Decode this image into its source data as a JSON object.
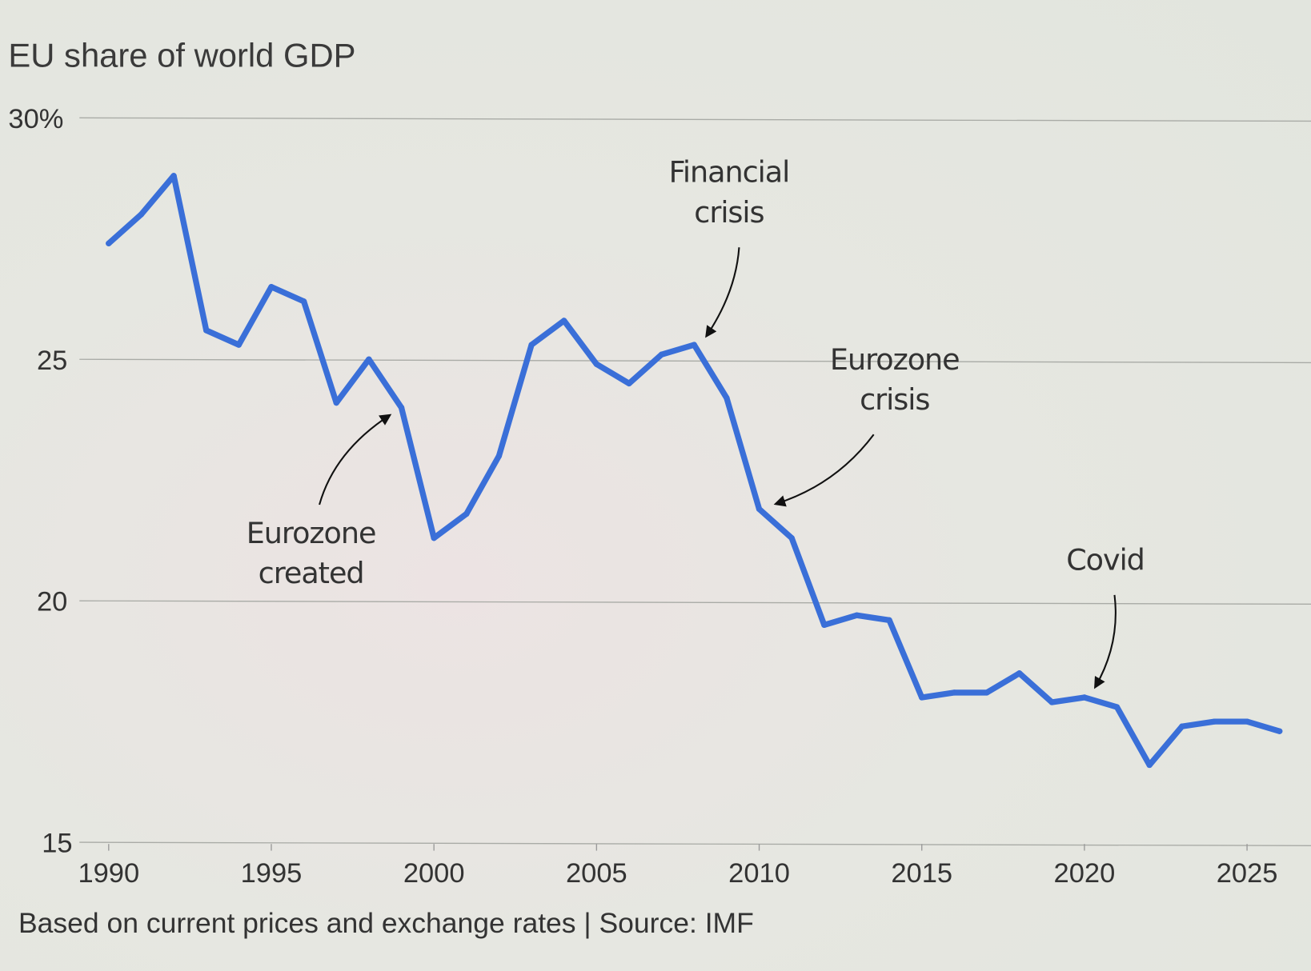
{
  "chart_data": {
    "type": "line",
    "title": "EU share of world GDP",
    "footnote": "Based on current prices and exchange rates | Source: IMF",
    "xlabel": "",
    "ylabel": "",
    "ylim": [
      15,
      30
    ],
    "xlim": [
      1990,
      2026
    ],
    "grid": true,
    "y_ticks": [
      "30%",
      "25",
      "20",
      "15"
    ],
    "y_tick_values": [
      30,
      25,
      20,
      15
    ],
    "x_ticks": [
      "1990",
      "1995",
      "2000",
      "2005",
      "2010",
      "2015",
      "2020",
      "2025"
    ],
    "x_tick_values": [
      1990,
      1995,
      2000,
      2005,
      2010,
      2015,
      2020,
      2025
    ],
    "color": "#3a6fd8",
    "series": [
      {
        "name": "EU share of world GDP",
        "x": [
          1990,
          1991,
          1992,
          1993,
          1994,
          1995,
          1996,
          1997,
          1998,
          1999,
          2000,
          2001,
          2002,
          2003,
          2004,
          2005,
          2006,
          2007,
          2008,
          2009,
          2010,
          2011,
          2012,
          2013,
          2014,
          2015,
          2016,
          2017,
          2018,
          2019,
          2020,
          2021,
          2022,
          2023,
          2024,
          2025,
          2026
        ],
        "values": [
          27.4,
          28.0,
          28.8,
          25.6,
          25.3,
          26.5,
          26.2,
          24.1,
          25.0,
          24.0,
          21.3,
          21.8,
          23.0,
          25.3,
          25.8,
          24.9,
          24.5,
          25.1,
          25.3,
          24.2,
          21.9,
          21.3,
          19.5,
          19.7,
          19.6,
          18.0,
          18.1,
          18.1,
          18.5,
          17.9,
          18.0,
          17.8,
          16.6,
          17.4,
          17.5,
          17.5,
          17.3
        ]
      }
    ],
    "annotations": [
      {
        "lines": [
          "Eurozone",
          "created"
        ],
        "year": 1999
      },
      {
        "lines": [
          "Financial",
          "crisis"
        ],
        "year": 2008
      },
      {
        "lines": [
          "Eurozone",
          "crisis"
        ],
        "year": 2010
      },
      {
        "lines": [
          "Covid"
        ],
        "year": 2020
      }
    ]
  }
}
